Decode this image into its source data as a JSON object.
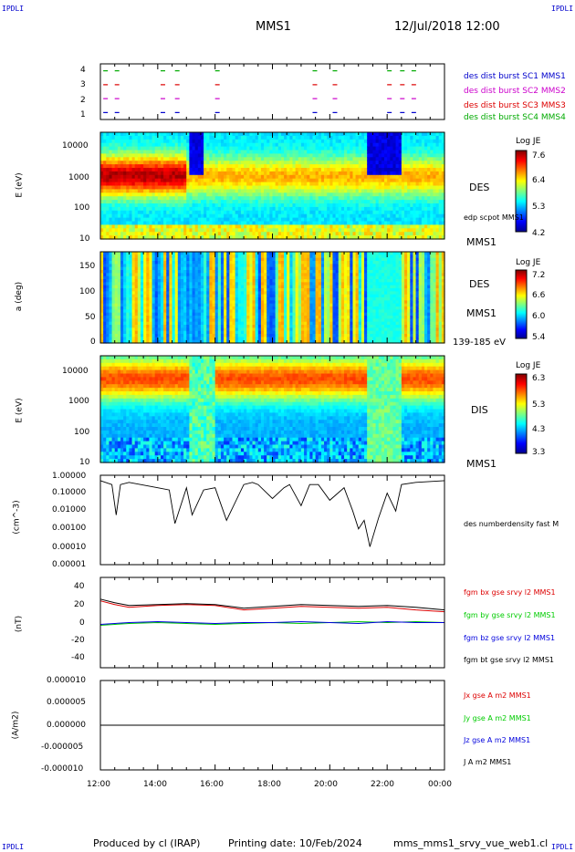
{
  "corner_tl": "IPDLI",
  "corner_tr": "IPDLI",
  "corner_bl": "IPDLI",
  "corner_br": "IPDLI",
  "header": {
    "title": "MMS1",
    "date": "12/Jul/2018 12:00"
  },
  "footer": {
    "produced_by": "Produced by cl (IRAP)",
    "printing_date": "Printing date: 10/Feb/2024",
    "filename": "mms_mms1_srvy_vue_web1.cl"
  },
  "colors": {
    "mms1": "#0000cc",
    "mms2": "#cc00cc",
    "mms3": "#dd0000",
    "mms4": "#00aa00",
    "bx": "#dd0000",
    "by": "#00cc00",
    "bz": "#0000dd",
    "bt": "#000000"
  },
  "time_axis": {
    "ticks": [
      "12:00",
      "14:00",
      "16:00",
      "18:00",
      "20:00",
      "22:00",
      "00:00"
    ]
  },
  "chart_data": [
    {
      "type": "scatter",
      "panel": "burst",
      "ylim": [
        0.5,
        4.5
      ],
      "yticks": [
        "4",
        "3",
        "2",
        "1"
      ],
      "legend": [
        "des dist burst SC1 MMS1",
        "des dist burst SC2 MMS2",
        "des dist burst SC3 MMS3",
        "des dist burst SC4 MMS4"
      ],
      "burst_times_hours": [
        0.1,
        0.5,
        2.1,
        2.6,
        4.0,
        7.4,
        8.1,
        10.0,
        10.45,
        10.85
      ]
    },
    {
      "type": "heatmap",
      "panel": "des-energy",
      "ylabel": "E (eV)",
      "yticks": [
        "10000",
        "1000",
        "100",
        "10"
      ],
      "right_labels": [
        "DES",
        "edp scpot MMS1",
        "MMS1"
      ],
      "colorbar": {
        "title": "Log JE",
        "ticks": [
          "7.6",
          "6.4",
          "5.3",
          "4.2"
        ]
      }
    },
    {
      "type": "heatmap",
      "panel": "des-pitch",
      "ylabel": "a (deg)",
      "yticks": [
        "150",
        "100",
        "50",
        "0"
      ],
      "right_labels": [
        "DES",
        "MMS1",
        "139-185 eV"
      ],
      "colorbar": {
        "title": "Log JE",
        "ticks": [
          "7.2",
          "6.6",
          "6.0",
          "5.4"
        ]
      }
    },
    {
      "type": "heatmap",
      "panel": "dis-energy",
      "ylabel": "E (eV)",
      "yticks": [
        "10000",
        "1000",
        "100",
        "10"
      ],
      "right_labels": [
        "DIS",
        "MMS1"
      ],
      "colorbar": {
        "title": "Log JE",
        "ticks": [
          "6.3",
          "5.3",
          "4.3",
          "3.3"
        ]
      }
    },
    {
      "type": "line",
      "panel": "density",
      "ylabel": "(cm^-3)",
      "yticks": [
        "1.00000",
        "0.10000",
        "0.01000",
        "0.00100",
        "0.00010",
        "0.00001"
      ],
      "legend": [
        "des numberdensity fast M"
      ],
      "x": [
        0,
        0.4,
        0.55,
        0.7,
        1.0,
        2.0,
        2.4,
        2.6,
        3.0,
        3.2,
        3.6,
        4.0,
        4.4,
        5.0,
        5.3,
        5.5,
        6.0,
        6.4,
        6.6,
        7.0,
        7.3,
        7.6,
        8.0,
        8.5,
        8.8,
        9.0,
        9.2,
        9.4,
        9.7,
        10.0,
        10.3,
        10.5,
        11.0,
        12.0
      ],
      "y": [
        0.5,
        0.3,
        0.006,
        0.3,
        0.4,
        0.2,
        0.15,
        0.002,
        0.2,
        0.006,
        0.15,
        0.2,
        0.003,
        0.3,
        0.4,
        0.3,
        0.05,
        0.2,
        0.3,
        0.02,
        0.3,
        0.3,
        0.04,
        0.2,
        0.01,
        0.001,
        0.003,
        0.0001,
        0.004,
        0.1,
        0.01,
        0.3,
        0.4,
        0.5
      ]
    },
    {
      "type": "line",
      "panel": "magnetic-field",
      "ylabel": "(nT)",
      "ylim": [
        -50,
        50
      ],
      "yticks": [
        "40",
        "20",
        "0",
        "-20",
        "-40"
      ],
      "x": [
        0,
        0.5,
        1,
        2,
        3,
        4,
        5,
        6,
        7,
        8,
        9,
        10,
        11,
        12
      ],
      "series": [
        {
          "name": "fgm bx gse srvy l2 MMS1",
          "values": [
            24,
            20,
            17,
            19,
            20,
            19,
            14,
            16,
            18,
            17,
            16,
            17,
            14,
            12
          ]
        },
        {
          "name": "fgm by gse srvy l2 MMS1",
          "values": [
            -3,
            -2,
            -1,
            0,
            -1,
            -2,
            -1,
            0,
            -1,
            0,
            1,
            0,
            1,
            0
          ]
        },
        {
          "name": "fgm bz gse srvy l2 MMS1",
          "values": [
            -2,
            -1,
            0,
            1,
            0,
            -1,
            0,
            0,
            1,
            0,
            -1,
            1,
            0,
            0
          ]
        },
        {
          "name": "fgm bt gse srvy l2 MMS1",
          "values": [
            26,
            22,
            19,
            20,
            21,
            20,
            16,
            18,
            20,
            19,
            18,
            19,
            17,
            14
          ]
        }
      ]
    },
    {
      "type": "line",
      "panel": "current",
      "ylabel": "(A/m2)",
      "yticks": [
        "0.000010",
        "0.000005",
        "0.000000",
        "-0.000005",
        "-0.000010"
      ],
      "ylim": [
        -1e-05,
        1e-05
      ],
      "x": [
        0,
        12
      ],
      "series": [
        {
          "name": "Jx gse A m2 MMS1",
          "values": [
            0,
            0
          ]
        },
        {
          "name": "Jy gse A m2 MMS1",
          "values": [
            0,
            0
          ]
        },
        {
          "name": "Jz gse A m2 MMS1",
          "values": [
            0,
            0
          ]
        },
        {
          "name": "J A m2 MMS1",
          "values": [
            0,
            0
          ]
        }
      ]
    }
  ]
}
